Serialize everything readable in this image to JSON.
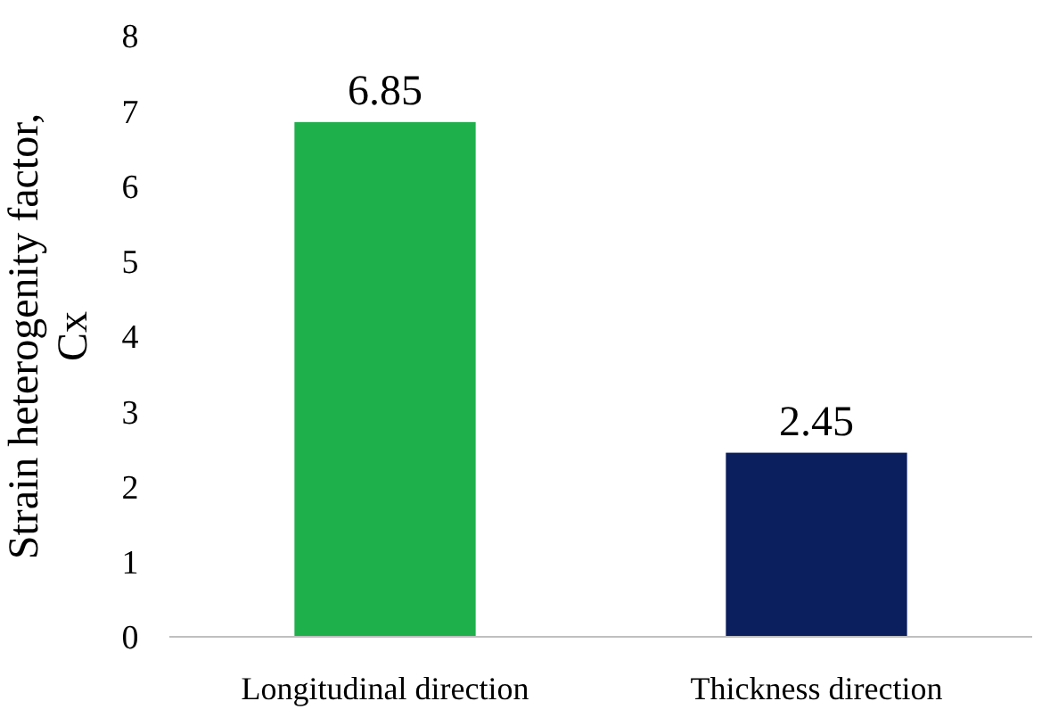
{
  "chart_data": {
    "type": "bar",
    "ylabel": "Strain heterogenity factor, Cx",
    "categories": [
      "Longitudinal direction",
      "Thickness direction"
    ],
    "values": [
      6.85,
      2.45
    ],
    "colors": [
      "#1db04b",
      "#0b1f5e"
    ],
    "ylim": [
      0,
      8
    ],
    "yticks": [
      0,
      1,
      2,
      3,
      4,
      5,
      6,
      7,
      8
    ],
    "data_labels": true
  }
}
